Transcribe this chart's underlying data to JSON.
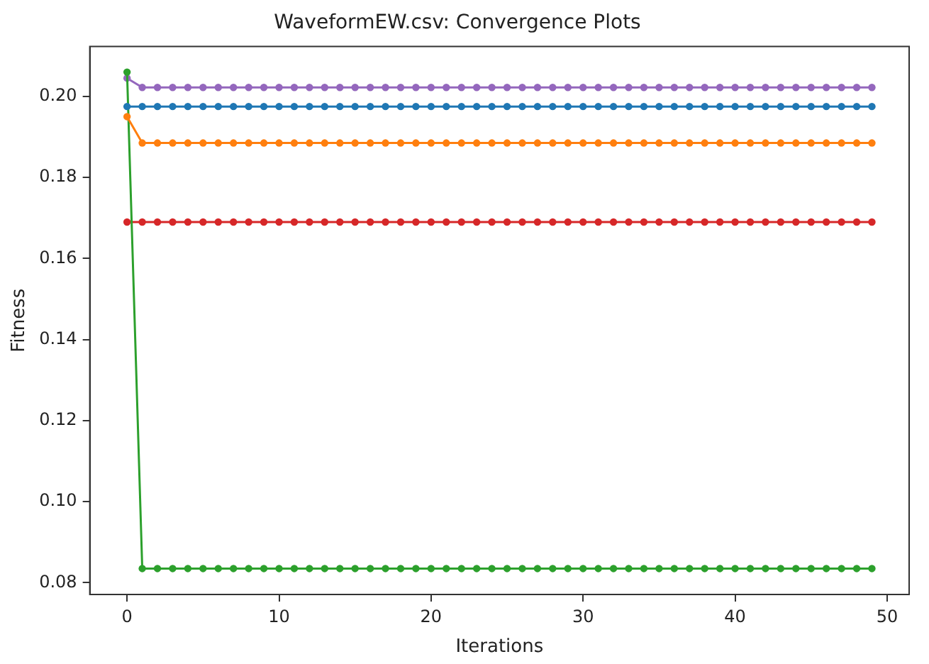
{
  "chart_data": {
    "type": "line",
    "title": "WaveformEW.csv: Convergence Plots",
    "xlabel": "Iterations",
    "ylabel": "Fitness",
    "x": [
      0,
      1,
      2,
      3,
      4,
      5,
      6,
      7,
      8,
      9,
      10,
      11,
      12,
      13,
      14,
      15,
      16,
      17,
      18,
      19,
      20,
      21,
      22,
      23,
      24,
      25,
      26,
      27,
      28,
      29,
      30,
      31,
      32,
      33,
      34,
      35,
      36,
      37,
      38,
      39,
      40,
      41,
      42,
      43,
      44,
      45,
      46,
      47,
      48,
      49
    ],
    "series": [
      {
        "color": "#1f77b4",
        "values": [
          0.1975,
          0.1975,
          0.1975,
          0.1975,
          0.1975,
          0.1975,
          0.1975,
          0.1975,
          0.1975,
          0.1975,
          0.1975,
          0.1975,
          0.1975,
          0.1975,
          0.1975,
          0.1975,
          0.1975,
          0.1975,
          0.1975,
          0.1975,
          0.1975,
          0.1975,
          0.1975,
          0.1975,
          0.1975,
          0.1975,
          0.1975,
          0.1975,
          0.1975,
          0.1975,
          0.1975,
          0.1975,
          0.1975,
          0.1975,
          0.1975,
          0.1975,
          0.1975,
          0.1975,
          0.1975,
          0.1975,
          0.1975,
          0.1975,
          0.1975,
          0.1975,
          0.1975,
          0.1975,
          0.1975,
          0.1975,
          0.1975,
          0.1975
        ]
      },
      {
        "color": "#ff7f0e",
        "values": [
          0.195,
          0.1885,
          0.1885,
          0.1885,
          0.1885,
          0.1885,
          0.1885,
          0.1885,
          0.1885,
          0.1885,
          0.1885,
          0.1885,
          0.1885,
          0.1885,
          0.1885,
          0.1885,
          0.1885,
          0.1885,
          0.1885,
          0.1885,
          0.1885,
          0.1885,
          0.1885,
          0.1885,
          0.1885,
          0.1885,
          0.1885,
          0.1885,
          0.1885,
          0.1885,
          0.1885,
          0.1885,
          0.1885,
          0.1885,
          0.1885,
          0.1885,
          0.1885,
          0.1885,
          0.1885,
          0.1885,
          0.1885,
          0.1885,
          0.1885,
          0.1885,
          0.1885,
          0.1885,
          0.1885,
          0.1885,
          0.1885,
          0.1885
        ]
      },
      {
        "color": "#2ca02c",
        "values": [
          0.206,
          0.0835,
          0.0835,
          0.0835,
          0.0835,
          0.0835,
          0.0835,
          0.0835,
          0.0835,
          0.0835,
          0.0835,
          0.0835,
          0.0835,
          0.0835,
          0.0835,
          0.0835,
          0.0835,
          0.0835,
          0.0835,
          0.0835,
          0.0835,
          0.0835,
          0.0835,
          0.0835,
          0.0835,
          0.0835,
          0.0835,
          0.0835,
          0.0835,
          0.0835,
          0.0835,
          0.0835,
          0.0835,
          0.0835,
          0.0835,
          0.0835,
          0.0835,
          0.0835,
          0.0835,
          0.0835,
          0.0835,
          0.0835,
          0.0835,
          0.0835,
          0.0835,
          0.0835,
          0.0835,
          0.0835,
          0.0835,
          0.0835
        ]
      },
      {
        "color": "#d62728",
        "values": [
          0.169,
          0.169,
          0.169,
          0.169,
          0.169,
          0.169,
          0.169,
          0.169,
          0.169,
          0.169,
          0.169,
          0.169,
          0.169,
          0.169,
          0.169,
          0.169,
          0.169,
          0.169,
          0.169,
          0.169,
          0.169,
          0.169,
          0.169,
          0.169,
          0.169,
          0.169,
          0.169,
          0.169,
          0.169,
          0.169,
          0.169,
          0.169,
          0.169,
          0.169,
          0.169,
          0.169,
          0.169,
          0.169,
          0.169,
          0.169,
          0.169,
          0.169,
          0.169,
          0.169,
          0.169,
          0.169,
          0.169,
          0.169,
          0.169,
          0.169
        ]
      },
      {
        "color": "#9467bd",
        "values": [
          0.2045,
          0.2022,
          0.2022,
          0.2022,
          0.2022,
          0.2022,
          0.2022,
          0.2022,
          0.2022,
          0.2022,
          0.2022,
          0.2022,
          0.2022,
          0.2022,
          0.2022,
          0.2022,
          0.2022,
          0.2022,
          0.2022,
          0.2022,
          0.2022,
          0.2022,
          0.2022,
          0.2022,
          0.2022,
          0.2022,
          0.2022,
          0.2022,
          0.2022,
          0.2022,
          0.2022,
          0.2022,
          0.2022,
          0.2022,
          0.2022,
          0.2022,
          0.2022,
          0.2022,
          0.2022,
          0.2022,
          0.2022,
          0.2022,
          0.2022,
          0.2022,
          0.2022,
          0.2022,
          0.2022,
          0.2022,
          0.2022,
          0.2022
        ]
      }
    ],
    "xlim": [
      -2.45,
      51.45
    ],
    "xticks": [
      0,
      10,
      20,
      30,
      40,
      50
    ],
    "ylim": [
      0.0771,
      0.2123
    ],
    "yticks": [
      {
        "value": 0.08,
        "label": "0.08"
      },
      {
        "value": 0.1,
        "label": "0.10"
      },
      {
        "value": 0.12,
        "label": "0.12"
      },
      {
        "value": 0.14,
        "label": "0.14"
      },
      {
        "value": 0.16,
        "label": "0.16"
      },
      {
        "value": 0.18,
        "label": "0.18"
      },
      {
        "value": 0.2,
        "label": "0.20"
      }
    ],
    "grid": false,
    "legend": false,
    "marker": "circle",
    "line_style": "solid"
  }
}
